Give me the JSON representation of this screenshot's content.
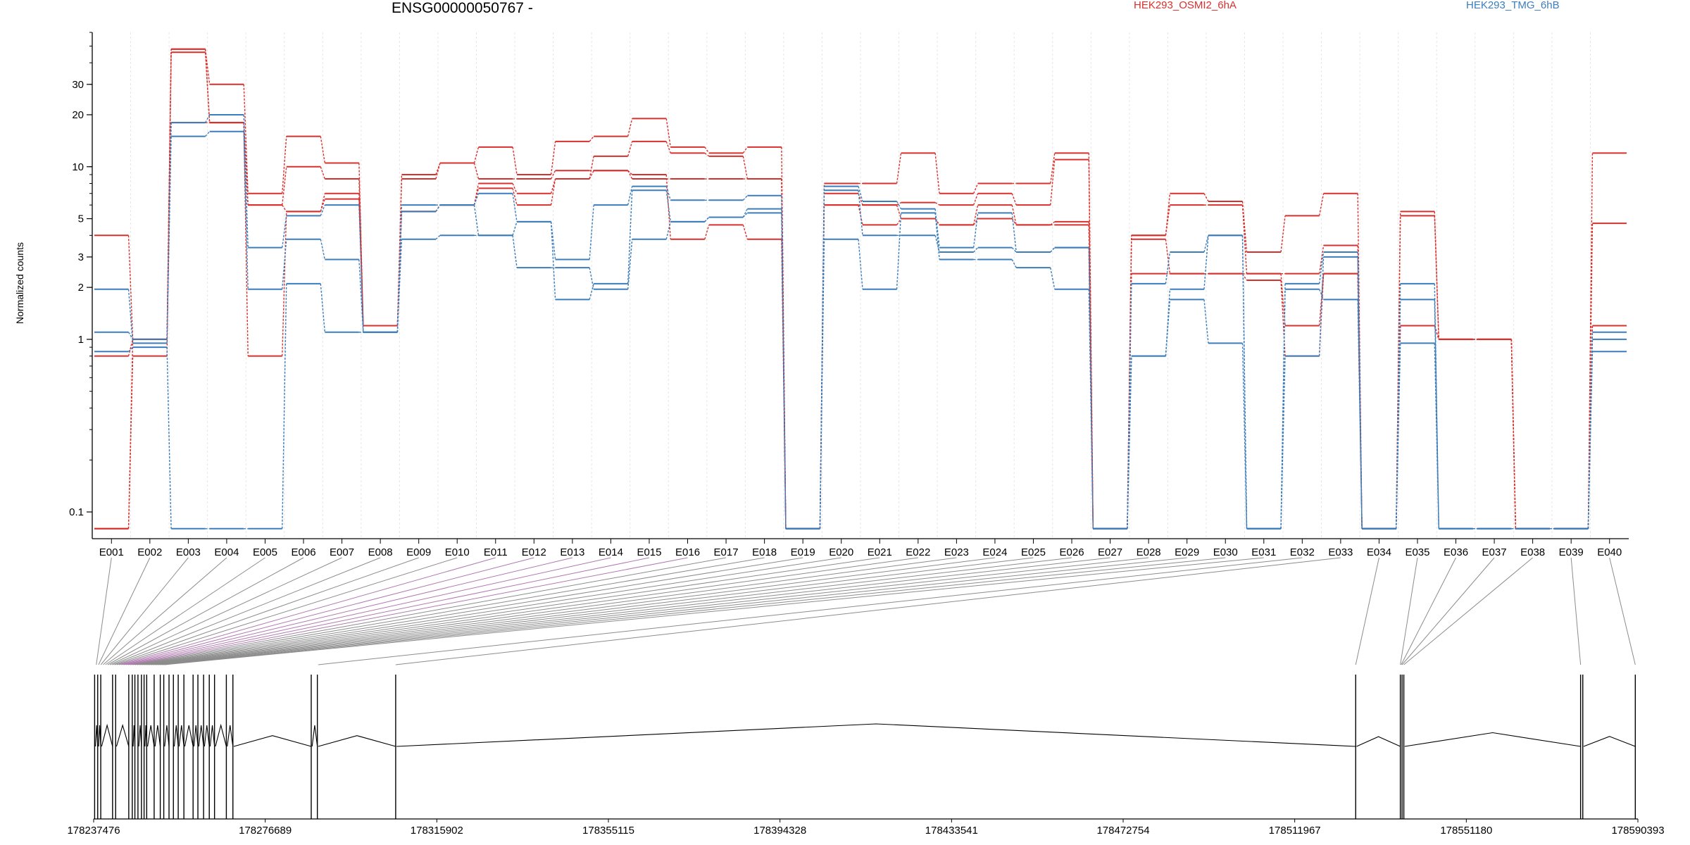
{
  "chart_data": {
    "type": "line",
    "title": "ENSG00000050767 -",
    "ylabel": "Normalized counts",
    "yscale": "log",
    "ylim": [
      0.07,
      60
    ],
    "yticks": [
      0.1,
      1,
      2,
      3,
      5,
      10,
      20,
      30
    ],
    "categories": [
      "E001",
      "E002",
      "E003",
      "E004",
      "E005",
      "E006",
      "E007",
      "E008",
      "E009",
      "E010",
      "E011",
      "E012",
      "E013",
      "E014",
      "E015",
      "E016",
      "E017",
      "E018",
      "E019",
      "E020",
      "E021",
      "E022",
      "E023",
      "E024",
      "E025",
      "E026",
      "E027",
      "E028",
      "E029",
      "E030",
      "E031",
      "E032",
      "E033",
      "E034",
      "E035",
      "E036",
      "E037",
      "E038",
      "E039",
      "E040"
    ],
    "legend": [
      {
        "name": "HEK293_OSMI2_6hA",
        "color": "#d7312e"
      },
      {
        "name": "HEK293_TMG_6hB",
        "color": "#3c7dbb"
      }
    ],
    "series": [
      {
        "group": "HEK293_OSMI2_6hA",
        "values": [
          4,
          1,
          48,
          30,
          7,
          15,
          10.5,
          1.2,
          9,
          10.5,
          13,
          9,
          14,
          15,
          19,
          13,
          12,
          13,
          0.08,
          8,
          8,
          12,
          7,
          8,
          8,
          12,
          0.08,
          4,
          7,
          6.3,
          3.2,
          5.2,
          7,
          0.08,
          5.5,
          1,
          1,
          0.08,
          0.08,
          12
        ]
      },
      {
        "group": "HEK293_OSMI2_6hA",
        "values": [
          0.8,
          1,
          48,
          18,
          6,
          10,
          8.5,
          1.2,
          8.5,
          10.5,
          8.5,
          8.5,
          9.5,
          9.5,
          8.5,
          8.5,
          8.5,
          8.5,
          0.08,
          7,
          6,
          6.2,
          6,
          7,
          6,
          11,
          0.08,
          4,
          6,
          6,
          2.4,
          2.4,
          3.5,
          0.08,
          5.2,
          1,
          1,
          0.08,
          0.08,
          4.7
        ]
      },
      {
        "group": "HEK293_OSMI2_6hA",
        "values": [
          0.08,
          0.8,
          46,
          18,
          6,
          5.5,
          7,
          1.2,
          5.5,
          6,
          8,
          7,
          8.5,
          11.5,
          14,
          12,
          11.5,
          8.5,
          0.08,
          6,
          4.6,
          5,
          4.6,
          6,
          4.6,
          4.8,
          0.08,
          3.8,
          2.4,
          2.4,
          2.2,
          0.8,
          2.4,
          0.08,
          1.2,
          1,
          1,
          0.08,
          0.08,
          1.2
        ]
      },
      {
        "group": "HEK293_OSMI2_6hA",
        "values": [
          0.08,
          1,
          18,
          18,
          0.8,
          5.5,
          6.5,
          1.2,
          5.5,
          6,
          7.5,
          6,
          8.5,
          9.5,
          9,
          3.8,
          4.6,
          3.8,
          0.08,
          6,
          6,
          5,
          4.6,
          5,
          4.6,
          4.6,
          0.08,
          2.4,
          2.4,
          2.4,
          2.4,
          1.2,
          2.4,
          0.08,
          1.2,
          1,
          1,
          0.08,
          0.08,
          1.2
        ]
      },
      {
        "group": "HEK293_TMG_6hB",
        "values": [
          1.95,
          0.95,
          18,
          20,
          3.4,
          5.2,
          6,
          1.1,
          6,
          6,
          7,
          4.8,
          2.9,
          6,
          7.7,
          6.4,
          6.4,
          6.8,
          0.08,
          7.7,
          6.3,
          5.7,
          3.4,
          5.4,
          3.2,
          3.4,
          0.08,
          2.1,
          3.2,
          4,
          0.08,
          2.1,
          3.2,
          0.08,
          2.1,
          0.08,
          0.08,
          0.08,
          0.08,
          1.1
        ]
      },
      {
        "group": "HEK293_TMG_6hB",
        "values": [
          1.1,
          1,
          15,
          16,
          1.95,
          3.8,
          2.9,
          1.1,
          5.5,
          6,
          4,
          4.8,
          1.7,
          2.1,
          7.3,
          4.8,
          5.1,
          5.7,
          0.08,
          7.3,
          4,
          4,
          3.2,
          3.4,
          3.2,
          3.4,
          0.08,
          0.8,
          1.95,
          4,
          0.08,
          0.8,
          3,
          0.08,
          1.7,
          0.08,
          0.08,
          0.08,
          0.08,
          1
        ]
      },
      {
        "group": "HEK293_TMG_6hB",
        "values": [
          0.85,
          0.9,
          0.08,
          0.08,
          0.08,
          2.1,
          1.1,
          1.1,
          3.8,
          4,
          4,
          2.6,
          2.6,
          1.95,
          3.8,
          4.8,
          5.1,
          5.4,
          0.08,
          3.8,
          1.95,
          5.4,
          2.9,
          2.9,
          2.6,
          1.95,
          0.08,
          0.8,
          1.7,
          0.95,
          0.08,
          1.95,
          1.7,
          0.08,
          0.95,
          0.08,
          0.08,
          0.08,
          0.08,
          0.85
        ]
      }
    ],
    "genomic_axis": {
      "tick_labels": [
        "178237476",
        "178276689",
        "178315902",
        "178355115",
        "178394328",
        "178433541",
        "178472754",
        "178511967",
        "178551180",
        "178590393"
      ],
      "range": [
        178237476,
        178590393
      ],
      "exon_starts": [
        178237700,
        178238400,
        178239100,
        178241800,
        178242500,
        178245500,
        178246300,
        178246900,
        178247600,
        178248400,
        178249000,
        178249600,
        178251300,
        178252700,
        178253500,
        178254700,
        178255700,
        178256800,
        178258100,
        178260200,
        178261300,
        178262600,
        178263900,
        178265100,
        178267800,
        178269300,
        178287200,
        178288600,
        178306500,
        178525900,
        178536100,
        178536500,
        178536900,
        178577300,
        178577800,
        178589800
      ],
      "intron_arcs": [
        [
          178237900,
          178238400
        ],
        [
          178238600,
          178239100
        ],
        [
          178239300,
          178241800
        ],
        [
          178242700,
          178245500
        ],
        [
          178246500,
          178246900
        ],
        [
          178247800,
          178248400
        ],
        [
          178249200,
          178249600
        ],
        [
          178249800,
          178251300
        ],
        [
          178251500,
          178252700
        ],
        [
          178253700,
          178254700
        ],
        [
          178255900,
          178256800
        ],
        [
          178257000,
          178258100
        ],
        [
          178258300,
          178260200
        ],
        [
          178260400,
          178261300
        ],
        [
          178261500,
          178262600
        ],
        [
          178262800,
          178263900
        ],
        [
          178264100,
          178265100
        ],
        [
          178265300,
          178267800
        ],
        [
          178268000,
          178269300
        ],
        [
          178269500,
          178287200
        ],
        [
          178287400,
          178288600
        ],
        [
          178288800,
          178306500
        ],
        [
          178306700,
          178525900
        ],
        [
          178526100,
          178536100
        ],
        [
          178537100,
          178577300
        ],
        [
          178578000,
          178589800
        ]
      ]
    }
  }
}
